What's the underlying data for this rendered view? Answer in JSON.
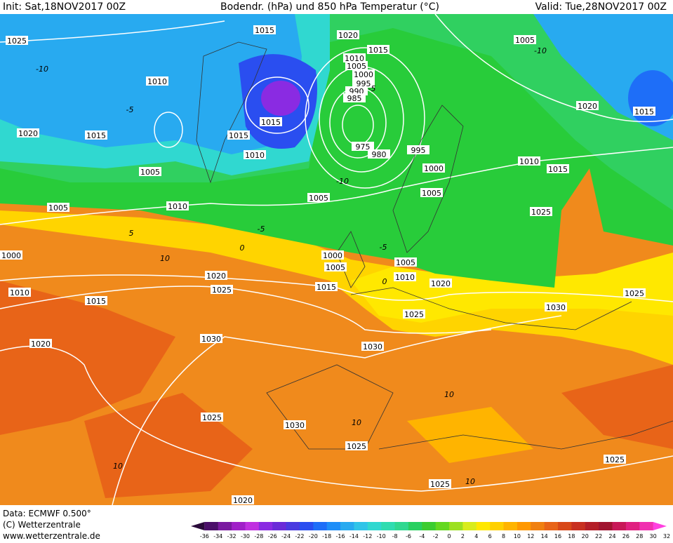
{
  "header": {
    "init": "Init: Sat,18NOV2017 00Z",
    "title": "Bodendr. (hPa) und 850 hPa Temperatur (°C)",
    "valid": "Valid: Tue,28NOV2017 00Z"
  },
  "footer": {
    "data": "Data: ECMWF  0.500°",
    "copyright": "(C) Wetterzentrale",
    "url": "www.wetterzentrale.de"
  },
  "isobar_labels": [
    "1015",
    "1025",
    "1020",
    "1015",
    "1005",
    "1010",
    "1005",
    "1000",
    "995",
    "990",
    "985",
    "1010",
    "1020",
    "1015",
    "1015",
    "1020",
    "1015",
    "1015",
    "1010",
    "975",
    "980",
    "995",
    "1000",
    "1010",
    "1015",
    "1005",
    "1005",
    "1005",
    "1010",
    "1005",
    "1025",
    "1000",
    "1000",
    "1005",
    "1005",
    "1010",
    "1020",
    "1025",
    "1015",
    "1020",
    "1010",
    "1015",
    "1025",
    "1030",
    "1025",
    "1030",
    "1020",
    "1030",
    "1025",
    "1030",
    "1025",
    "1025",
    "1025",
    "1020"
  ],
  "temperature_labels": [
    "-10",
    "-5",
    "-10",
    "-5",
    "0",
    "5",
    "10",
    "-5",
    "0",
    "10",
    "10",
    "10",
    "-10",
    "-5",
    "10"
  ],
  "colorbar": {
    "ticks": [
      -36,
      -34,
      -32,
      -30,
      -28,
      -26,
      -24,
      -22,
      -20,
      -18,
      -16,
      -14,
      -12,
      -10,
      -8,
      -6,
      -4,
      -2,
      0,
      2,
      4,
      6,
      8,
      10,
      12,
      14,
      16,
      18,
      20,
      22,
      24,
      26,
      28,
      30,
      32
    ],
    "colors": [
      "#2a0a3a",
      "#4b0f6a",
      "#7a1aa0",
      "#a020c8",
      "#c030e0",
      "#8a2be2",
      "#6a2bd8",
      "#4a3ae0",
      "#2a4ef0",
      "#1e6ef8",
      "#1e8ef8",
      "#28aaf0",
      "#30c4e8",
      "#30d8d0",
      "#30dcb0",
      "#30d890",
      "#28d060",
      "#3ccc30",
      "#64d820",
      "#9ce020",
      "#d8ec1c",
      "#ffe800",
      "#ffd000",
      "#ffb400",
      "#ff9800",
      "#f08010",
      "#e86418",
      "#d84818",
      "#c83020",
      "#b41e28",
      "#a01430",
      "#c81858",
      "#e02080",
      "#f030b0",
      "#ff40e0"
    ]
  }
}
